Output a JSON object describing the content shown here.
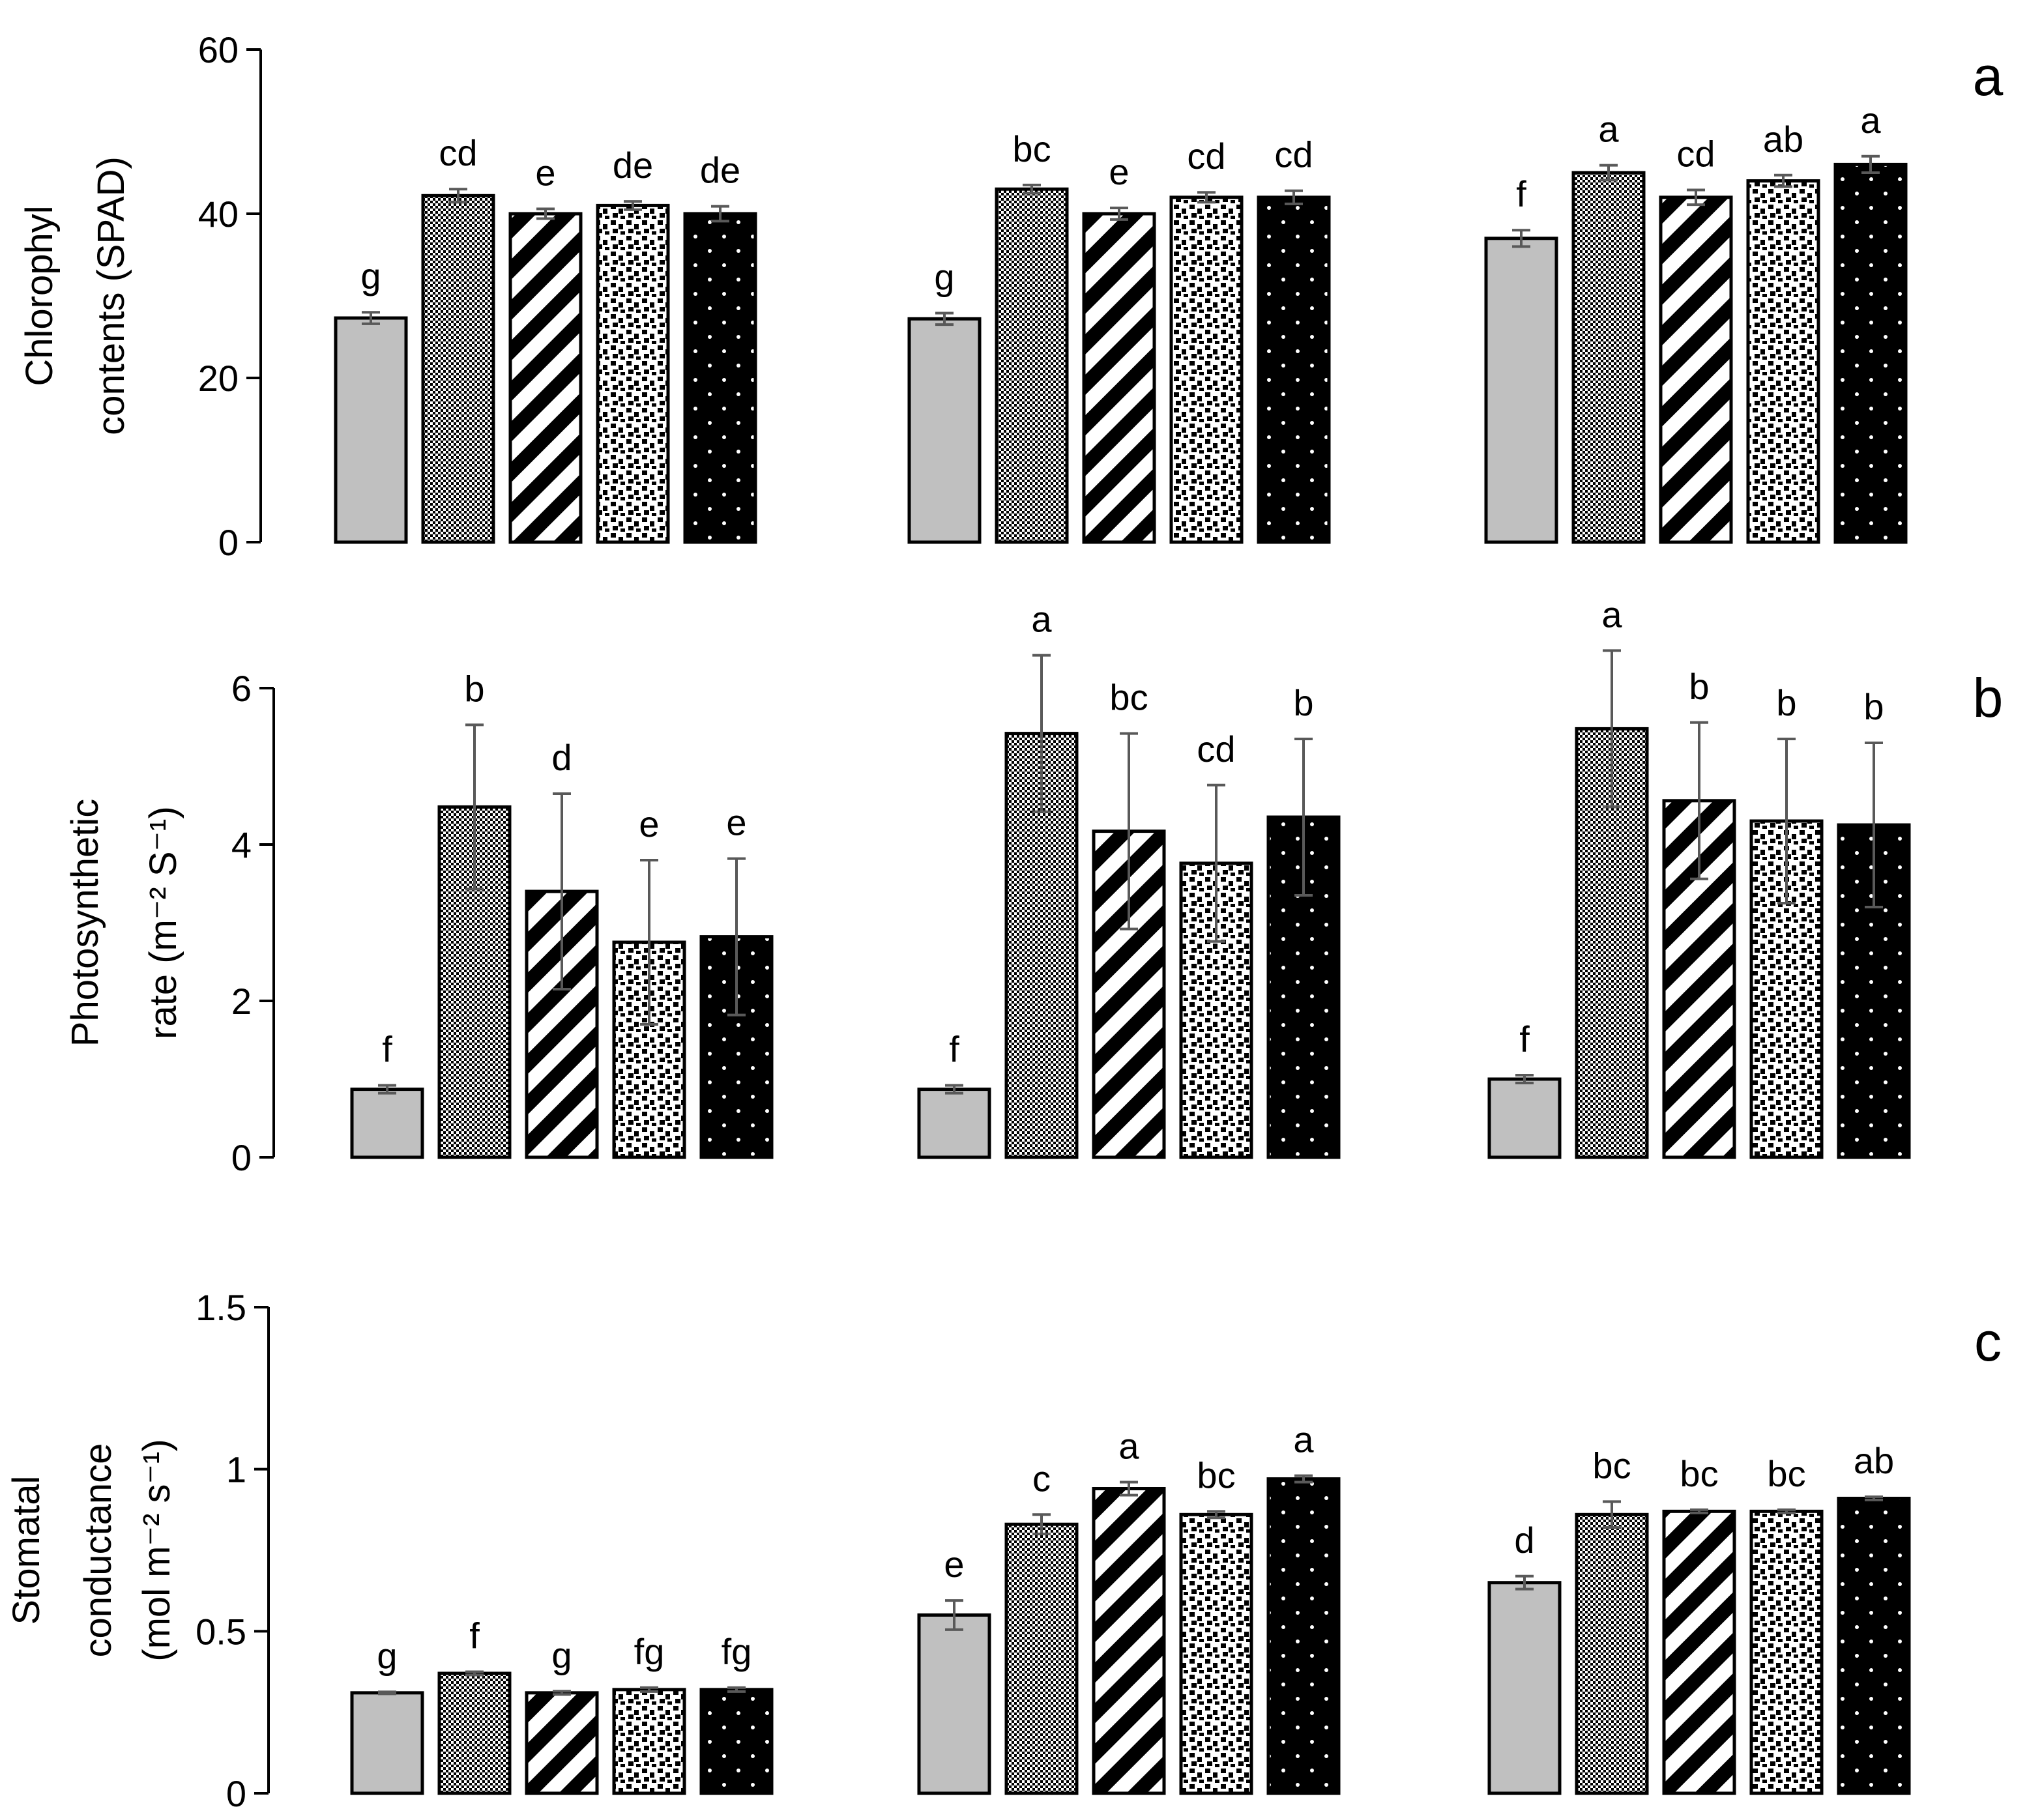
{
  "chart_data": [
    {
      "type": "bar",
      "panel_label": "a",
      "ylabel_lines": [
        "Chlorophyl",
        "contents (SPAD)"
      ],
      "ylim": [
        0,
        60
      ],
      "yticks": [
        0,
        20,
        40,
        60
      ],
      "ytick_labels": [
        "0",
        "20",
        "40",
        "60"
      ],
      "groups": [
        {
          "values": [
            27.3,
            42.2,
            40.0,
            41.0,
            40.0
          ],
          "errors": [
            0.7,
            0.8,
            0.6,
            0.5,
            0.9
          ],
          "labels": [
            "g",
            "cd",
            "e",
            "de",
            "de"
          ]
        },
        {
          "values": [
            27.2,
            43.0,
            40.0,
            42.0,
            42.0
          ],
          "errors": [
            0.7,
            0.5,
            0.7,
            0.6,
            0.8
          ],
          "labels": [
            "g",
            "bc",
            "e",
            "cd",
            "cd"
          ]
        },
        {
          "values": [
            37.0,
            45.0,
            42.0,
            44.0,
            46.0
          ],
          "errors": [
            1.0,
            0.9,
            0.9,
            0.7,
            1.0
          ],
          "labels": [
            "f",
            "a",
            "cd",
            "ab",
            "a"
          ]
        }
      ]
    },
    {
      "type": "bar",
      "panel_label": "b",
      "ylabel_lines": [
        "Photosynthetic",
        "rate (m⁻² S⁻¹)"
      ],
      "ylim": [
        0,
        6
      ],
      "yticks": [
        0,
        2,
        4,
        6
      ],
      "ytick_labels": [
        "0",
        "2",
        "4",
        "6"
      ],
      "groups": [
        {
          "values": [
            0.87,
            4.48,
            3.4,
            2.75,
            2.82
          ],
          "errors": [
            0.05,
            1.05,
            1.25,
            1.05,
            1.0
          ],
          "labels": [
            "f",
            "b",
            "d",
            "e",
            "e"
          ]
        },
        {
          "values": [
            0.87,
            5.42,
            4.17,
            3.76,
            4.35
          ],
          "errors": [
            0.05,
            1.0,
            1.25,
            1.0,
            1.0
          ],
          "labels": [
            "f",
            "a",
            "bc",
            "cd",
            "b"
          ]
        },
        {
          "values": [
            1.0,
            5.48,
            4.56,
            4.3,
            4.25
          ],
          "errors": [
            0.05,
            1.0,
            1.0,
            1.05,
            1.05
          ],
          "labels": [
            "f",
            "a",
            "b",
            "b",
            "b"
          ]
        }
      ]
    },
    {
      "type": "bar",
      "panel_label": "c",
      "ylabel_lines": [
        "Stomatal",
        "conductance",
        "(mol m⁻² s⁻¹)"
      ],
      "ylim": [
        0,
        1.5
      ],
      "yticks": [
        0,
        0.5,
        1,
        1.5
      ],
      "ytick_labels": [
        "0",
        "0.5",
        "1",
        "1.5"
      ],
      "groups": [
        {
          "values": [
            0.31,
            0.37,
            0.31,
            0.32,
            0.32
          ],
          "errors": [
            0.003,
            0.005,
            0.005,
            0.006,
            0.006
          ],
          "labels": [
            "g",
            "f",
            "g",
            "fg",
            "fg"
          ]
        },
        {
          "values": [
            0.55,
            0.83,
            0.94,
            0.86,
            0.97
          ],
          "errors": [
            0.045,
            0.03,
            0.02,
            0.01,
            0.01
          ],
          "labels": [
            "e",
            "c",
            "a",
            "bc",
            "a"
          ]
        },
        {
          "values": [
            0.65,
            0.86,
            0.87,
            0.87,
            0.91
          ],
          "errors": [
            0.02,
            0.04,
            0.005,
            0.005,
            0.005
          ],
          "labels": [
            "d",
            "bc",
            "bc",
            "bc",
            "ab"
          ]
        }
      ]
    }
  ],
  "colors": {
    "bar_fill_solid": "#c0c0c0",
    "bar_outline": "#000000",
    "error_bar": "#595959",
    "axis": "#000000"
  },
  "bar_patterns": [
    "solid-gray",
    "checkerboard",
    "diagonal-stripes",
    "confetti",
    "black-white-dots"
  ]
}
